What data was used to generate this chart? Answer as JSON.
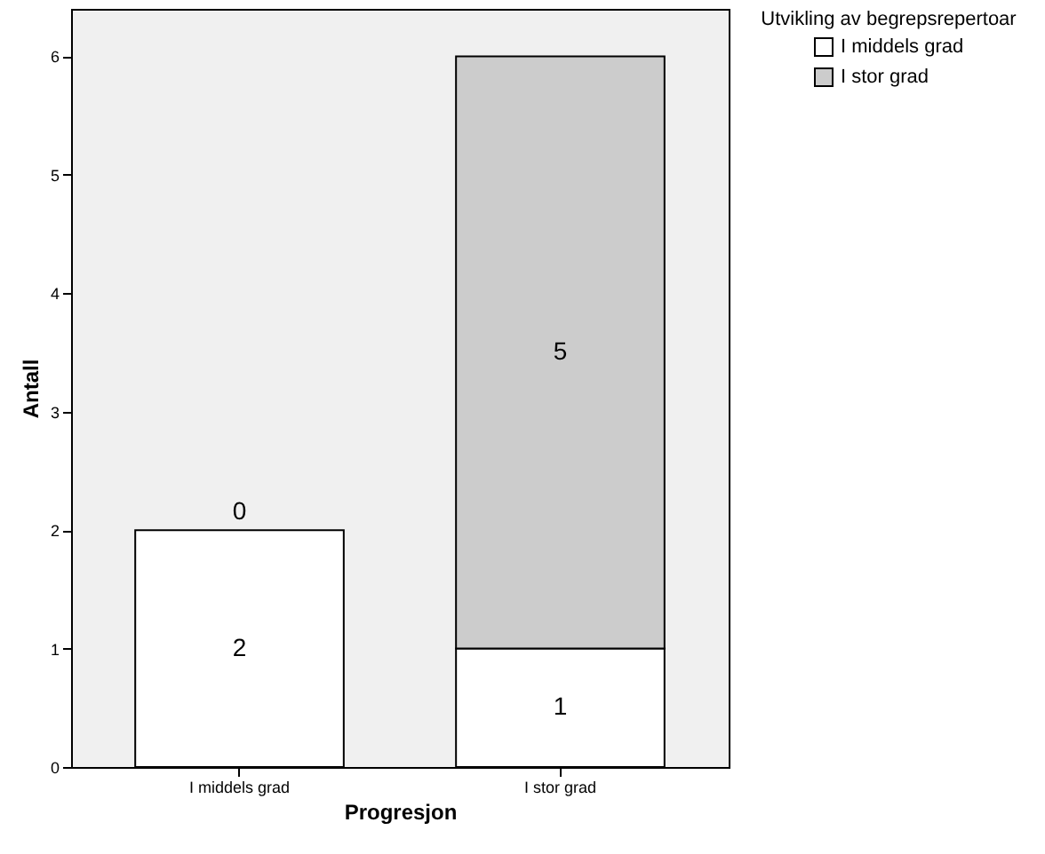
{
  "chart_data": {
    "type": "bar",
    "stacked": true,
    "xlabel": "Progresjon",
    "ylabel": "Antall",
    "legend_title": "Utvikling av begrepsrepertoar",
    "categories": [
      "I middels grad",
      "I stor grad"
    ],
    "series": [
      {
        "name": "I middels grad",
        "color": "#ffffff",
        "values": [
          2,
          1
        ]
      },
      {
        "name": "I stor grad",
        "color": "#cccccc",
        "values": [
          0,
          5
        ]
      }
    ],
    "ylim": [
      0,
      6.4
    ],
    "yticks": [
      0,
      1,
      2,
      3,
      4,
      5,
      6
    ],
    "grid": false,
    "legend": "top right",
    "data_labels": true
  }
}
